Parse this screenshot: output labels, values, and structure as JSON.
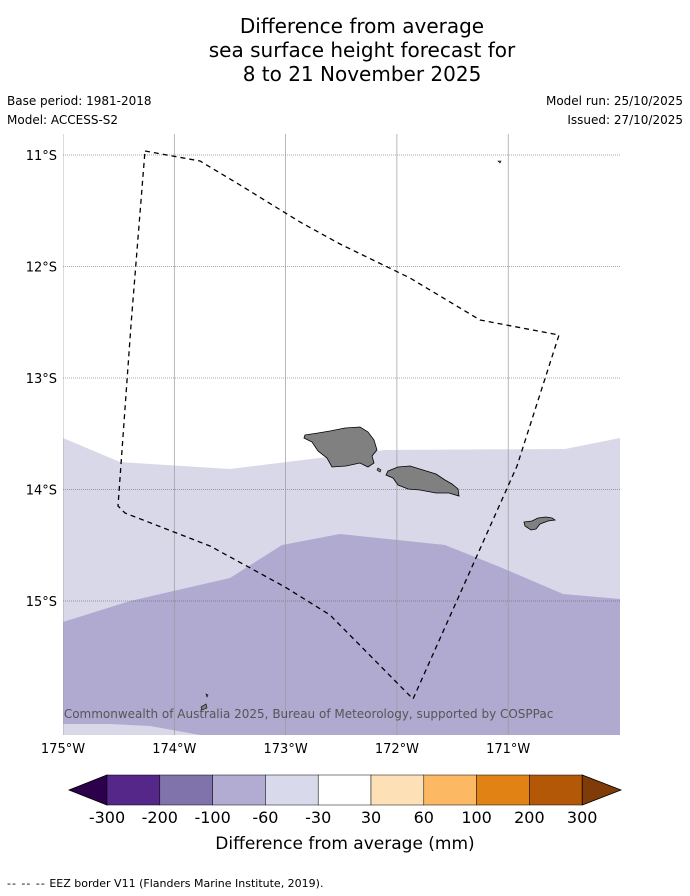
{
  "title": {
    "line1": "Difference from average",
    "line2": "sea surface height forecast for",
    "line3": "8 to 21 November 2025"
  },
  "meta": {
    "base_period": "Base period: 1981-2018",
    "model": "Model: ACCESS-S2",
    "model_run": "Model run: 25/10/2025",
    "issued": "Issued: 27/10/2025"
  },
  "map": {
    "lon_range": [
      -175,
      -170
    ],
    "lat_range": [
      -16.2,
      -10.8
    ],
    "lat_ticks": [
      {
        "value": -11,
        "label": "11°S"
      },
      {
        "value": -12,
        "label": "12°S"
      },
      {
        "value": -13,
        "label": "13°S"
      },
      {
        "value": -14,
        "label": "14°S"
      },
      {
        "value": -15,
        "label": "15°S"
      }
    ],
    "lon_ticks": [
      {
        "value": -175,
        "label": "175°W"
      },
      {
        "value": -174,
        "label": "174°W"
      },
      {
        "value": -173,
        "label": "173°W"
      },
      {
        "value": -172,
        "label": "172°W"
      },
      {
        "value": -171,
        "label": "171°W"
      }
    ],
    "copyright": "© Commonwealth of Australia 2025, Bureau of Meteorology, supported by COSPPac",
    "zones": [
      {
        "category": "-30 to -60",
        "color": "#d8d8e9"
      },
      {
        "category": "-60 to -100",
        "color": "#b0aad1"
      }
    ],
    "land_color": "#808080"
  },
  "colorbar": {
    "title": "Difference from average (mm)",
    "labels": [
      "-300",
      "-200",
      "-100",
      "-60",
      "-30",
      "30",
      "60",
      "100",
      "200",
      "300"
    ],
    "colors": [
      "#2d004b",
      "#542788",
      "#8073ac",
      "#b2abd2",
      "#d8daeb",
      "#ffffff",
      "#fee0b6",
      "#fdb863",
      "#e08214",
      "#b35806",
      "#7f3b08"
    ]
  },
  "footer": {
    "dash": "-- -- --",
    "text": "EEZ border V11 (Flanders Marine Institute, 2019)."
  }
}
